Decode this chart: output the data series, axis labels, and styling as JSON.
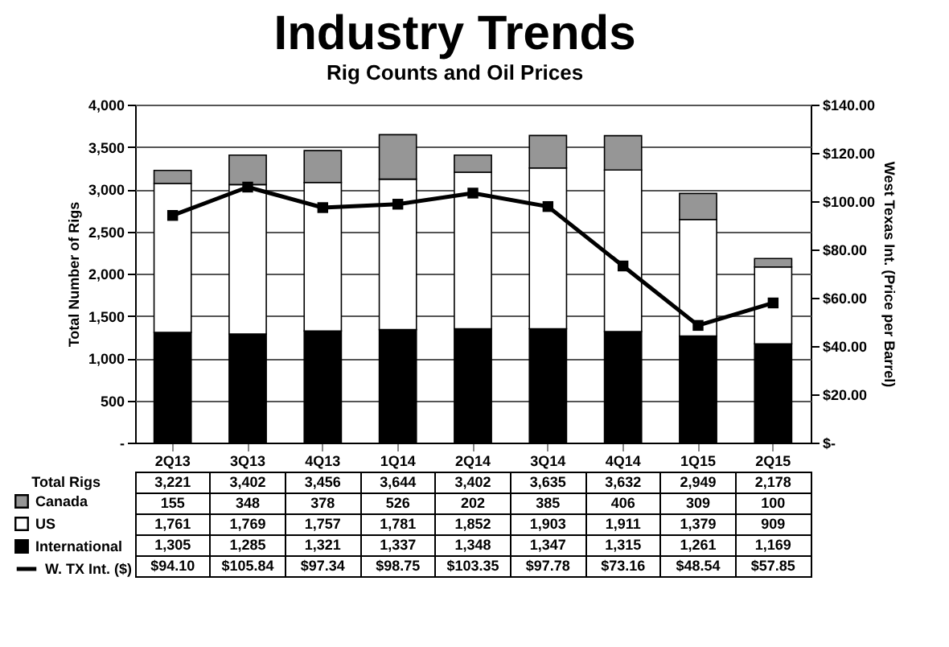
{
  "chart_data": {
    "type": "bar",
    "title": "Industry Trends",
    "subtitle": "Rig Counts and Oil Prices",
    "ylabel": "Total Number of Rigs",
    "y2label": "West Texas Int. (Price per Barrel)",
    "categories": [
      "2Q13",
      "3Q13",
      "4Q13",
      "1Q14",
      "2Q14",
      "3Q14",
      "4Q14",
      "1Q15",
      "2Q15"
    ],
    "stacked": true,
    "series": [
      {
        "name": "International",
        "color": "#000000",
        "values": [
          1305,
          1285,
          1321,
          1337,
          1348,
          1347,
          1315,
          1261,
          1169
        ],
        "value_labels": [
          "1,305",
          "1,285",
          "1,321",
          "1,337",
          "1,348",
          "1,347",
          "1,315",
          "1,261",
          "1,169"
        ]
      },
      {
        "name": "US",
        "color": "#ffffff",
        "values": [
          1761,
          1769,
          1757,
          1781,
          1852,
          1903,
          1911,
          1379,
          909
        ],
        "value_labels": [
          "1,761",
          "1,769",
          "1,757",
          "1,781",
          "1,852",
          "1,903",
          "1,911",
          "1,379",
          "909"
        ]
      },
      {
        "name": "Canada",
        "color": "#969696",
        "values": [
          155,
          348,
          378,
          526,
          202,
          385,
          406,
          309,
          100
        ],
        "value_labels": [
          "155",
          "348",
          "378",
          "526",
          "202",
          "385",
          "406",
          "309",
          "100"
        ]
      },
      {
        "name": "W. TX Int. ($)",
        "type": "line",
        "axis": "y2",
        "color": "#000000",
        "marker": "square",
        "line_style": "solid",
        "values": [
          94.1,
          105.84,
          97.34,
          98.75,
          103.35,
          97.78,
          73.16,
          48.54,
          57.85
        ],
        "value_labels": [
          "$94.10",
          "$105.84",
          "$97.34",
          "$98.75",
          "$103.35",
          "$97.78",
          "$73.16",
          "$48.54",
          "$57.85"
        ]
      }
    ],
    "totals": [
      "3,221",
      "3,402",
      "3,456",
      "3,644",
      "3,402",
      "3,635",
      "3,632",
      "2,949",
      "2,178"
    ],
    "annotations": [
      "Total Rigs"
    ],
    "ylim": [
      0,
      4000
    ],
    "yticks": [
      {
        "value": 0,
        "label": "-"
      },
      500,
      {
        "value": 1000,
        "label": "1,000"
      },
      {
        "value": 1500,
        "label": "1,500"
      },
      {
        "value": 2000,
        "label": "2,000"
      },
      {
        "value": 2500,
        "label": "2,500"
      },
      {
        "value": 3000,
        "label": "3,000"
      },
      {
        "value": 3500,
        "label": "3,500"
      },
      {
        "value": 4000,
        "label": "4,000"
      }
    ],
    "y2lim": [
      0,
      140
    ],
    "y2ticks": [
      {
        "value": 0,
        "label": "$-"
      },
      {
        "value": 20,
        "label": "$20.00"
      },
      {
        "value": 40,
        "label": "$40.00"
      },
      {
        "value": 60,
        "label": "$60.00"
      },
      {
        "value": 80,
        "label": "$80.00"
      },
      {
        "value": 100,
        "label": "$100.00"
      },
      {
        "value": 120,
        "label": "$120.00"
      },
      {
        "value": 140,
        "label": "$140.00"
      }
    ],
    "grid": "y",
    "legend": "bottom left"
  }
}
